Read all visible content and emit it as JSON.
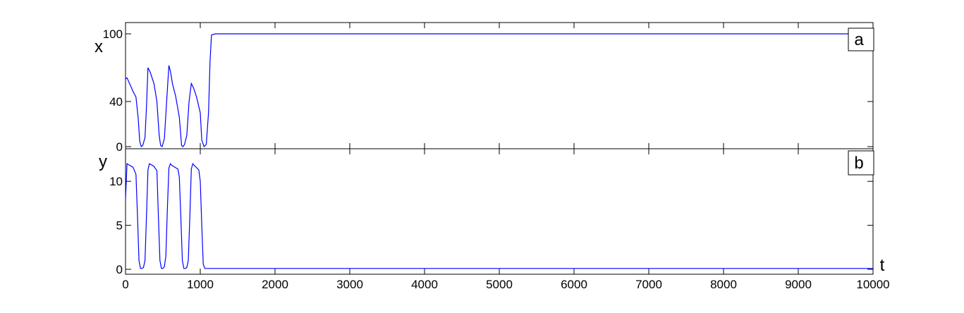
{
  "chart_data": [
    {
      "type": "line",
      "panel_label": "a",
      "ylabel": "x",
      "xlim": [
        0,
        10000
      ],
      "ylim": [
        0,
        100
      ],
      "yticks": [
        0,
        40,
        100
      ],
      "xticks": [],
      "line_color": "#0000ff",
      "series": [
        {
          "x": [
            0,
            20,
            60,
            100,
            140,
            170,
            190,
            210,
            230,
            260,
            280,
            300,
            330,
            380,
            420,
            450,
            470,
            490,
            520,
            550,
            580,
            600,
            630,
            670,
            720,
            750,
            770,
            790,
            820,
            850,
            880,
            910,
            950,
            1000,
            1020,
            1050,
            1080,
            1110,
            1130,
            1150,
            1200,
            2000,
            3000,
            4000,
            5000,
            6000,
            7000,
            8000,
            9000,
            10000
          ],
          "y": [
            60,
            61,
            55,
            49,
            44,
            25,
            5,
            0,
            1,
            8,
            35,
            70,
            66,
            56,
            40,
            10,
            1,
            0,
            7,
            40,
            72,
            67,
            55,
            45,
            26,
            1,
            0,
            2,
            10,
            40,
            56,
            52,
            44,
            30,
            6,
            0,
            2,
            30,
            75,
            99,
            100,
            100,
            100,
            100,
            100,
            100,
            100,
            100,
            100,
            100
          ]
        }
      ]
    },
    {
      "type": "line",
      "panel_label": "b",
      "ylabel": "y",
      "xlabel": "t",
      "xlim": [
        0,
        10000
      ],
      "ylim": [
        0,
        12.5
      ],
      "yticks": [
        0,
        5,
        10
      ],
      "xticks": [
        0,
        1000,
        2000,
        3000,
        4000,
        5000,
        6000,
        7000,
        8000,
        9000,
        10000
      ],
      "line_color": "#0000ff",
      "series": [
        {
          "x": [
            0,
            20,
            40,
            100,
            140,
            160,
            180,
            200,
            220,
            240,
            260,
            280,
            300,
            320,
            380,
            420,
            440,
            460,
            480,
            500,
            520,
            540,
            560,
            580,
            600,
            620,
            700,
            720,
            740,
            760,
            780,
            800,
            820,
            840,
            860,
            880,
            900,
            920,
            980,
            1000,
            1020,
            1040,
            1060,
            1080,
            1200,
            2000,
            3000,
            4000,
            5000,
            6000,
            7000,
            8000,
            9000,
            10000
          ],
          "y": [
            8,
            12,
            11.9,
            11.6,
            10.8,
            6,
            1,
            0.1,
            0.1,
            0.2,
            1,
            6,
            11.3,
            12,
            11.7,
            11.2,
            6,
            1,
            0.1,
            0.1,
            0.3,
            1.5,
            7,
            11.5,
            12,
            11.8,
            11.4,
            10.5,
            6,
            1,
            0.1,
            0.1,
            0.2,
            1,
            6,
            11.4,
            12,
            11.8,
            11.3,
            10,
            5,
            0.6,
            0.1,
            0.1,
            0.1,
            0.1,
            0.1,
            0.1,
            0.1,
            0.1,
            0.1,
            0.1,
            0.1,
            0.1
          ]
        }
      ]
    }
  ]
}
